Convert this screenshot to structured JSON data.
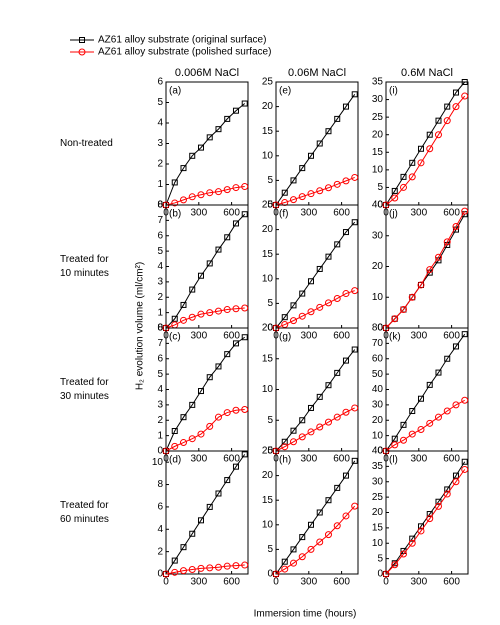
{
  "legend_position": "top left",
  "columns": [
    "0.006M NaCl",
    "0.06M NaCl",
    "0.6M NaCl"
  ],
  "rows": [
    [
      "Non-treated"
    ],
    [
      "Treated for",
      "10 minutes"
    ],
    [
      "Treated for",
      "30 minutes"
    ],
    [
      "Treated for",
      "60 minutes"
    ]
  ],
  "y_label": "H₂ evolution volume (ml/cm²)",
  "x_label": "Immersion time (hours)",
  "chart_data": [
    {
      "type": "line",
      "label": "(a)",
      "x": [
        0,
        80,
        160,
        240,
        320,
        400,
        480,
        560,
        640,
        720
      ],
      "xlim": [
        0,
        750
      ],
      "xticks": [
        0,
        300,
        600
      ],
      "ylim": [
        0,
        6
      ],
      "yticks": [
        0,
        1,
        2,
        3,
        4,
        5,
        6
      ],
      "series": [
        {
          "name": "AZ61 alloy substrate (original surface)",
          "color": "#000000",
          "marker": "square",
          "values": [
            0,
            1.1,
            1.8,
            2.4,
            2.8,
            3.3,
            3.7,
            4.2,
            4.6,
            4.95
          ]
        },
        {
          "name": "AZ61 alloy substrate (polished surface)",
          "color": "#ff0000",
          "marker": "circle",
          "values": [
            0,
            0.1,
            0.25,
            0.4,
            0.5,
            0.6,
            0.65,
            0.75,
            0.85,
            0.9
          ]
        }
      ]
    },
    {
      "type": "line",
      "label": "(e)",
      "x": [
        0,
        80,
        160,
        240,
        320,
        400,
        480,
        560,
        640,
        720
      ],
      "xlim": [
        0,
        750
      ],
      "xticks": [
        0,
        300,
        600
      ],
      "ylim": [
        0,
        25
      ],
      "yticks": [
        0,
        5,
        10,
        15,
        20,
        25
      ],
      "series": [
        {
          "name": "AZ61 alloy substrate (original surface)",
          "color": "#000000",
          "marker": "square",
          "values": [
            0,
            2.5,
            5,
            7.5,
            10,
            12.5,
            15,
            17.5,
            20,
            22.5
          ]
        },
        {
          "name": "AZ61 alloy substrate (polished surface)",
          "color": "#ff0000",
          "marker": "circle",
          "values": [
            0,
            0.5,
            1.1,
            1.7,
            2.3,
            2.9,
            3.5,
            4.2,
            4.9,
            5.6
          ]
        }
      ]
    },
    {
      "type": "line",
      "label": "(i)",
      "x": [
        0,
        80,
        160,
        240,
        320,
        400,
        480,
        560,
        640,
        720
      ],
      "xlim": [
        0,
        750
      ],
      "xticks": [
        0,
        300,
        600
      ],
      "ylim": [
        0,
        35
      ],
      "yticks": [
        0,
        5,
        10,
        15,
        20,
        25,
        30,
        35
      ],
      "series": [
        {
          "name": "AZ61 alloy substrate (original surface)",
          "color": "#000000",
          "marker": "square",
          "values": [
            0,
            4,
            8,
            12,
            16,
            20,
            24,
            28,
            32,
            35
          ]
        },
        {
          "name": "AZ61 alloy substrate (polished surface)",
          "color": "#ff0000",
          "marker": "circle",
          "values": [
            0,
            2,
            5,
            8,
            12,
            16,
            20,
            24,
            28,
            31
          ]
        }
      ]
    },
    {
      "type": "line",
      "label": "(b)",
      "x": [
        0,
        80,
        160,
        240,
        320,
        400,
        480,
        560,
        640,
        720
      ],
      "xlim": [
        0,
        750
      ],
      "xticks": [
        0,
        300,
        600
      ],
      "ylim": [
        0,
        8
      ],
      "yticks": [
        0,
        1,
        2,
        3,
        4,
        5,
        6,
        7,
        8
      ],
      "series": [
        {
          "name": "AZ61 alloy substrate (original surface)",
          "color": "#000000",
          "marker": "square",
          "values": [
            0,
            0.6,
            1.5,
            2.5,
            3.4,
            4.2,
            5.1,
            5.9,
            6.8,
            7.4
          ]
        },
        {
          "name": "AZ61 alloy substrate (polished surface)",
          "color": "#ff0000",
          "marker": "circle",
          "values": [
            0,
            0.2,
            0.5,
            0.7,
            0.9,
            1.0,
            1.1,
            1.2,
            1.25,
            1.3
          ]
        }
      ]
    },
    {
      "type": "line",
      "label": "(f)",
      "x": [
        0,
        80,
        160,
        240,
        320,
        400,
        480,
        560,
        640,
        720
      ],
      "xlim": [
        0,
        750
      ],
      "xticks": [
        0,
        300,
        600
      ],
      "ylim": [
        0,
        25
      ],
      "yticks": [
        0,
        5,
        10,
        15,
        20,
        25
      ],
      "series": [
        {
          "name": "AZ61 alloy substrate (original surface)",
          "color": "#000000",
          "marker": "square",
          "values": [
            0,
            2.2,
            4.6,
            7,
            9.5,
            12,
            14.5,
            17,
            19.5,
            21.5
          ]
        },
        {
          "name": "AZ61 alloy substrate (polished surface)",
          "color": "#ff0000",
          "marker": "circle",
          "values": [
            0,
            0.7,
            1.5,
            2.4,
            3.3,
            4.2,
            5.1,
            6,
            7,
            7.6
          ]
        }
      ]
    },
    {
      "type": "line",
      "label": "(j)",
      "x": [
        0,
        80,
        160,
        240,
        320,
        400,
        480,
        560,
        640,
        720
      ],
      "xlim": [
        0,
        750
      ],
      "xticks": [
        0,
        300,
        600
      ],
      "ylim": [
        0,
        40
      ],
      "yticks": [
        0,
        10,
        20,
        30,
        40
      ],
      "series": [
        {
          "name": "AZ61 alloy substrate (original surface)",
          "color": "#000000",
          "marker": "square",
          "values": [
            0,
            3,
            6,
            10,
            14,
            18,
            22,
            27,
            32,
            37
          ]
        },
        {
          "name": "AZ61 alloy substrate (polished surface)",
          "color": "#ff0000",
          "marker": "circle",
          "values": [
            0,
            3,
            6,
            10,
            14,
            19,
            23,
            28,
            33,
            38
          ]
        }
      ]
    },
    {
      "type": "line",
      "label": "(c)",
      "x": [
        0,
        80,
        160,
        240,
        320,
        400,
        480,
        560,
        640,
        720
      ],
      "xlim": [
        0,
        750
      ],
      "xticks": [
        0,
        300,
        600
      ],
      "ylim": [
        0,
        8
      ],
      "yticks": [
        0,
        1,
        2,
        3,
        4,
        5,
        6,
        7,
        8
      ],
      "series": [
        {
          "name": "AZ61 alloy substrate (original surface)",
          "color": "#000000",
          "marker": "square",
          "values": [
            0,
            1.3,
            2.2,
            3.0,
            3.9,
            4.8,
            5.5,
            6.3,
            7.0,
            7.4
          ]
        },
        {
          "name": "AZ61 alloy substrate (polished surface)",
          "color": "#ff0000",
          "marker": "circle",
          "values": [
            0,
            0.3,
            0.55,
            0.8,
            1.1,
            1.6,
            2.2,
            2.5,
            2.65,
            2.7
          ]
        }
      ]
    },
    {
      "type": "line",
      "label": "(g)",
      "x": [
        0,
        80,
        160,
        240,
        320,
        400,
        480,
        560,
        640,
        720
      ],
      "xlim": [
        0,
        750
      ],
      "xticks": [
        0,
        300,
        600
      ],
      "ylim": [
        0,
        20
      ],
      "yticks": [
        0,
        5,
        10,
        15,
        20
      ],
      "series": [
        {
          "name": "AZ61 alloy substrate (original surface)",
          "color": "#000000",
          "marker": "square",
          "values": [
            0,
            1.5,
            3.3,
            5,
            7,
            8.8,
            10.7,
            12.7,
            14.7,
            16.5
          ]
        },
        {
          "name": "AZ61 alloy substrate (polished surface)",
          "color": "#ff0000",
          "marker": "circle",
          "values": [
            0,
            0.7,
            1.5,
            2.3,
            3.1,
            3.9,
            4.7,
            5.5,
            6.3,
            7
          ]
        }
      ]
    },
    {
      "type": "line",
      "label": "(k)",
      "x": [
        0,
        80,
        160,
        240,
        320,
        400,
        480,
        560,
        640,
        720
      ],
      "xlim": [
        0,
        750
      ],
      "xticks": [
        0,
        300,
        600
      ],
      "ylim": [
        0,
        80
      ],
      "yticks": [
        0,
        10,
        20,
        30,
        40,
        50,
        60,
        70,
        80
      ],
      "series": [
        {
          "name": "AZ61 alloy substrate (original surface)",
          "color": "#000000",
          "marker": "square",
          "values": [
            0,
            8,
            17,
            26,
            34,
            43,
            51,
            60,
            68,
            76
          ]
        },
        {
          "name": "AZ61 alloy substrate (polished surface)",
          "color": "#ff0000",
          "marker": "circle",
          "values": [
            0,
            4,
            7,
            11,
            14,
            18,
            22,
            26,
            30,
            33
          ]
        }
      ]
    },
    {
      "type": "line",
      "label": "(d)",
      "x": [
        0,
        80,
        160,
        240,
        320,
        400,
        480,
        560,
        640,
        720
      ],
      "xlim": [
        0,
        750
      ],
      "xticks": [
        0,
        300,
        600
      ],
      "ylim": [
        0,
        11
      ],
      "yticks": [
        0,
        2,
        4,
        6,
        8,
        10
      ],
      "series": [
        {
          "name": "AZ61 alloy substrate (original surface)",
          "color": "#000000",
          "marker": "square",
          "values": [
            0,
            1.2,
            2.4,
            3.6,
            4.8,
            6,
            7.2,
            8.4,
            9.6,
            10.7
          ]
        },
        {
          "name": "AZ61 alloy substrate (polished surface)",
          "color": "#ff0000",
          "marker": "circle",
          "values": [
            0,
            0.15,
            0.3,
            0.4,
            0.5,
            0.55,
            0.6,
            0.7,
            0.75,
            0.8
          ]
        }
      ]
    },
    {
      "type": "line",
      "label": "(h)",
      "x": [
        0,
        80,
        160,
        240,
        320,
        400,
        480,
        560,
        640,
        720
      ],
      "xlim": [
        0,
        750
      ],
      "xticks": [
        0,
        300,
        600
      ],
      "ylim": [
        0,
        25
      ],
      "yticks": [
        0,
        5,
        10,
        15,
        20,
        25
      ],
      "series": [
        {
          "name": "AZ61 alloy substrate (original surface)",
          "color": "#000000",
          "marker": "square",
          "values": [
            0,
            2.5,
            5,
            7.5,
            10,
            12.5,
            15,
            17.5,
            20,
            23
          ]
        },
        {
          "name": "AZ61 alloy substrate (polished surface)",
          "color": "#ff0000",
          "marker": "circle",
          "values": [
            0,
            1,
            2.2,
            3.5,
            5,
            6.5,
            8,
            9.8,
            11.8,
            13.8
          ]
        }
      ]
    },
    {
      "type": "line",
      "label": "(l)",
      "x": [
        0,
        80,
        160,
        240,
        320,
        400,
        480,
        560,
        640,
        720
      ],
      "xlim": [
        0,
        750
      ],
      "xticks": [
        0,
        300,
        600
      ],
      "ylim": [
        0,
        40
      ],
      "yticks": [
        0,
        5,
        10,
        15,
        20,
        25,
        30,
        35,
        40
      ],
      "series": [
        {
          "name": "AZ61 alloy substrate (original surface)",
          "color": "#000000",
          "marker": "square",
          "values": [
            0,
            3.5,
            7.5,
            11.5,
            15.5,
            19.5,
            23.5,
            27.5,
            32,
            36.5
          ]
        },
        {
          "name": "AZ61 alloy substrate (polished surface)",
          "color": "#ff0000",
          "marker": "circle",
          "values": [
            0,
            3,
            6.5,
            10,
            14,
            18,
            22,
            26,
            30,
            34
          ]
        }
      ]
    }
  ]
}
